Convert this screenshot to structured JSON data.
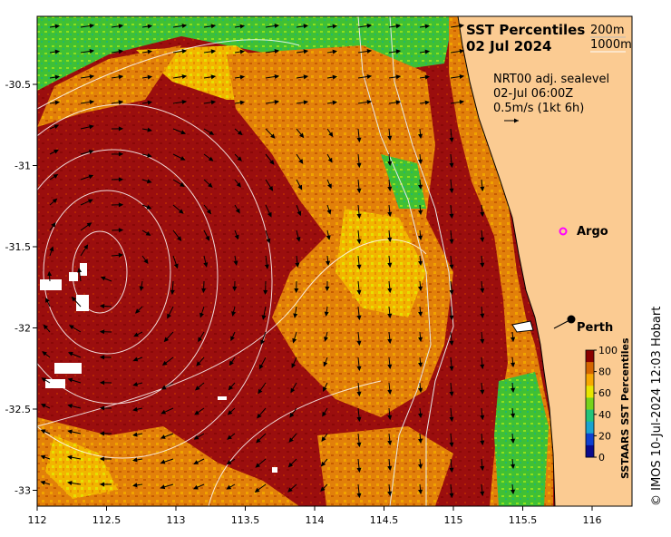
{
  "title": "SST Percentiles",
  "date": "02 Jul 2024",
  "contour_legend": {
    "line1": "200m",
    "line2": "1000m"
  },
  "current_info": {
    "product": "NRT00 adj. sealevel",
    "time": "02-Jul 06:00Z",
    "scale": "0.5m/s (1kt 6h)"
  },
  "places": {
    "argo": "Argo",
    "perth": "Perth"
  },
  "credit": "© IMOS 10-Jul-2024 12:03 Hobart",
  "colorbar": {
    "label": "SSTAARS SST Percentiles",
    "ticks": [
      "100",
      "80",
      "60",
      "40",
      "20",
      "0"
    ],
    "colors": [
      "#8b0000",
      "#d56600",
      "#f7a800",
      "#e8e600",
      "#77d31c",
      "#22c47a",
      "#1aa3cf",
      "#0f3fcf",
      "#0a0a8c"
    ]
  },
  "axes": {
    "x_ticks": [
      "112",
      "112.5",
      "113",
      "113.5",
      "114",
      "114.5",
      "115",
      "115.5",
      "116"
    ],
    "y_ticks": [
      "-30.5",
      "-31",
      "-31.5",
      "-32",
      "-32.5",
      "-33"
    ]
  },
  "colors": {
    "land": "#fbcb92",
    "high": "#9b0e0e",
    "orange": "#e2800a",
    "yellow": "#f4c400",
    "green": "#39c232"
  }
}
